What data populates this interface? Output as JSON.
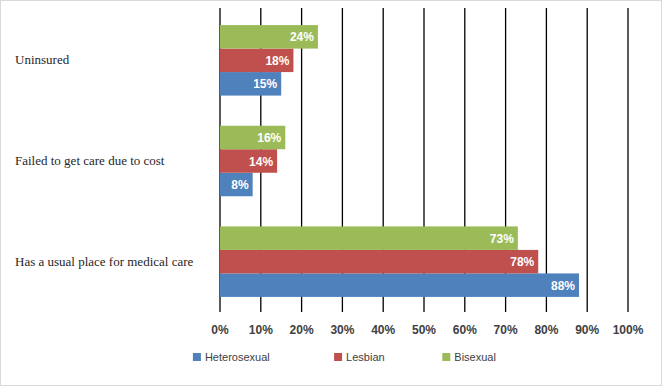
{
  "chart_data": {
    "type": "bar",
    "orientation": "horizontal",
    "categories": [
      "Uninsured",
      "Failed to get care due to cost",
      "Has a usual place for medical care"
    ],
    "series": [
      {
        "name": "Heterosexual",
        "color": "#4f81bd",
        "values": [
          15,
          8,
          88
        ],
        "value_labels": [
          "15%",
          "8%",
          "88%"
        ]
      },
      {
        "name": "Lesbian",
        "color": "#c0504d",
        "values": [
          18,
          14,
          78
        ],
        "value_labels": [
          "18%",
          "14%",
          "78%"
        ]
      },
      {
        "name": "Bisexual",
        "color": "#9bbb59",
        "values": [
          24,
          16,
          73
        ],
        "value_labels": [
          "24%",
          "16%",
          "73%"
        ]
      }
    ],
    "xlim": [
      0,
      100
    ],
    "xticks": [
      {
        "value": 0,
        "label": "0%"
      },
      {
        "value": 10,
        "label": "10%"
      },
      {
        "value": 20,
        "label": "20%"
      },
      {
        "value": 30,
        "label": "30%"
      },
      {
        "value": 40,
        "label": "40%"
      },
      {
        "value": 50,
        "label": "50%"
      },
      {
        "value": 60,
        "label": "60%"
      },
      {
        "value": 70,
        "label": "70%"
      },
      {
        "value": 80,
        "label": "80%"
      },
      {
        "value": 90,
        "label": "90%"
      },
      {
        "value": 100,
        "label": "100%"
      }
    ],
    "grid": true,
    "legend": "bottom",
    "data_labels": true
  }
}
